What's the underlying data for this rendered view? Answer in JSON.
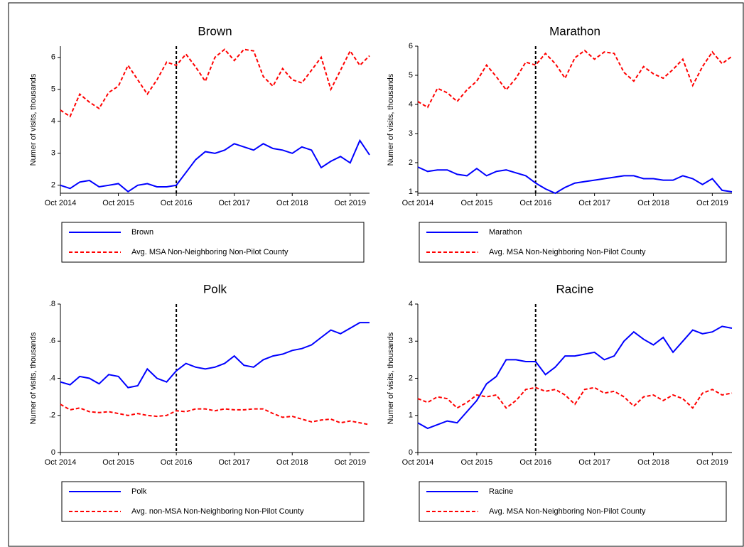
{
  "chart_data": [
    {
      "type": "line",
      "title": "Brown",
      "y_label": "Numer of visits, thousands",
      "x": [
        "2014-10",
        "2014-12",
        "2015-02",
        "2015-04",
        "2015-06",
        "2015-08",
        "2015-10",
        "2015-12",
        "2016-02",
        "2016-04",
        "2016-06",
        "2016-08",
        "2016-10",
        "2016-12",
        "2017-02",
        "2017-04",
        "2017-06",
        "2017-08",
        "2017-10",
        "2017-12",
        "2018-02",
        "2018-04",
        "2018-06",
        "2018-08",
        "2018-10",
        "2018-12",
        "2019-02",
        "2019-04",
        "2019-06",
        "2019-08",
        "2019-10",
        "2019-12",
        "2020-02"
      ],
      "xlim": [
        "2014-10",
        "2020-02"
      ],
      "xticks": [
        {
          "value": "2014-10",
          "label": "Oct 2014"
        },
        {
          "value": "2015-10",
          "label": "Oct 2015"
        },
        {
          "value": "2016-10",
          "label": "Oct 2016"
        },
        {
          "value": "2017-10",
          "label": "Oct 2017"
        },
        {
          "value": "2018-10",
          "label": "Oct 2018"
        },
        {
          "value": "2019-10",
          "label": "Oct 2019"
        }
      ],
      "ylim": [
        1.75,
        6.35
      ],
      "yticks": [
        2,
        3,
        4,
        5,
        6
      ],
      "vline": "2016-10",
      "series": [
        {
          "name": "Brown",
          "color": "#0000ff",
          "dashed": false,
          "values": [
            2.0,
            1.9,
            2.1,
            2.15,
            1.95,
            2.0,
            2.05,
            1.8,
            2.0,
            2.05,
            1.95,
            1.95,
            2.0,
            2.4,
            2.8,
            3.05,
            3.0,
            3.1,
            3.3,
            3.2,
            3.1,
            3.3,
            3.15,
            3.1,
            3.0,
            3.2,
            3.1,
            2.55,
            2.75,
            2.9,
            2.7,
            3.4,
            2.95
          ]
        },
        {
          "name": "Avg. MSA Non-Neighboring Non-Pilot County",
          "color": "#ff0000",
          "dashed": true,
          "values": [
            4.35,
            4.15,
            4.85,
            4.6,
            4.4,
            4.9,
            5.1,
            5.75,
            5.3,
            4.85,
            5.3,
            5.85,
            5.75,
            6.1,
            5.7,
            5.25,
            6.0,
            6.25,
            5.9,
            6.25,
            6.2,
            5.4,
            5.1,
            5.65,
            5.3,
            5.2,
            5.6,
            6.0,
            5.0,
            5.6,
            6.2,
            5.75,
            6.05
          ]
        }
      ]
    },
    {
      "type": "line",
      "title": "Marathon",
      "y_label": "Numer of visits, thousands",
      "x": [
        "2014-10",
        "2014-12",
        "2015-02",
        "2015-04",
        "2015-06",
        "2015-08",
        "2015-10",
        "2015-12",
        "2016-02",
        "2016-04",
        "2016-06",
        "2016-08",
        "2016-10",
        "2016-12",
        "2017-02",
        "2017-04",
        "2017-06",
        "2017-08",
        "2017-10",
        "2017-12",
        "2018-02",
        "2018-04",
        "2018-06",
        "2018-08",
        "2018-10",
        "2018-12",
        "2019-02",
        "2019-04",
        "2019-06",
        "2019-08",
        "2019-10",
        "2019-12",
        "2020-02"
      ],
      "xlim": [
        "2014-10",
        "2020-02"
      ],
      "xticks": [
        {
          "value": "2014-10",
          "label": "Oct 2014"
        },
        {
          "value": "2015-10",
          "label": "Oct 2015"
        },
        {
          "value": "2016-10",
          "label": "Oct 2016"
        },
        {
          "value": "2017-10",
          "label": "Oct 2017"
        },
        {
          "value": "2018-10",
          "label": "Oct 2018"
        },
        {
          "value": "2019-10",
          "label": "Oct 2019"
        }
      ],
      "ylim": [
        0.95,
        6.0
      ],
      "yticks": [
        1,
        2,
        3,
        4,
        5,
        6
      ],
      "vline": "2016-10",
      "series": [
        {
          "name": "Marathon",
          "color": "#0000ff",
          "dashed": false,
          "values": [
            1.85,
            1.7,
            1.75,
            1.75,
            1.6,
            1.55,
            1.8,
            1.55,
            1.7,
            1.75,
            1.65,
            1.55,
            1.3,
            1.1,
            0.95,
            1.15,
            1.3,
            1.35,
            1.4,
            1.45,
            1.5,
            1.55,
            1.55,
            1.45,
            1.45,
            1.4,
            1.4,
            1.55,
            1.45,
            1.25,
            1.45,
            1.05,
            1.0
          ]
        },
        {
          "name": "Avg. MSA Non-Neighboring Non-Pilot County",
          "color": "#ff0000",
          "dashed": true,
          "values": [
            4.1,
            3.9,
            4.55,
            4.4,
            4.1,
            4.5,
            4.8,
            5.35,
            4.95,
            4.5,
            4.9,
            5.45,
            5.35,
            5.75,
            5.4,
            4.9,
            5.6,
            5.85,
            5.55,
            5.8,
            5.75,
            5.1,
            4.8,
            5.3,
            5.05,
            4.9,
            5.2,
            5.55,
            4.65,
            5.3,
            5.8,
            5.4,
            5.65
          ]
        }
      ]
    },
    {
      "type": "line",
      "title": "Polk",
      "y_label": "Numer of visits, thousands",
      "x": [
        "2014-10",
        "2014-12",
        "2015-02",
        "2015-04",
        "2015-06",
        "2015-08",
        "2015-10",
        "2015-12",
        "2016-02",
        "2016-04",
        "2016-06",
        "2016-08",
        "2016-10",
        "2016-12",
        "2017-02",
        "2017-04",
        "2017-06",
        "2017-08",
        "2017-10",
        "2017-12",
        "2018-02",
        "2018-04",
        "2018-06",
        "2018-08",
        "2018-10",
        "2018-12",
        "2019-02",
        "2019-04",
        "2019-06",
        "2019-08",
        "2019-10",
        "2019-12",
        "2020-02"
      ],
      "xlim": [
        "2014-10",
        "2020-02"
      ],
      "xticks": [
        {
          "value": "2014-10",
          "label": "Oct 2014"
        },
        {
          "value": "2015-10",
          "label": "Oct 2015"
        },
        {
          "value": "2016-10",
          "label": "Oct 2016"
        },
        {
          "value": "2017-10",
          "label": "Oct 2017"
        },
        {
          "value": "2018-10",
          "label": "Oct 2018"
        },
        {
          "value": "2019-10",
          "label": "Oct 2019"
        }
      ],
      "ylim": [
        0,
        0.8
      ],
      "yticks": [
        0,
        {
          "value": 0.2,
          "label": ".2"
        },
        {
          "value": 0.4,
          "label": ".4"
        },
        {
          "value": 0.6,
          "label": ".6"
        },
        {
          "value": 0.8,
          "label": ".8"
        }
      ],
      "vline": "2016-10",
      "series": [
        {
          "name": "Polk",
          "color": "#0000ff",
          "dashed": false,
          "values": [
            0.38,
            0.365,
            0.41,
            0.4,
            0.37,
            0.42,
            0.41,
            0.35,
            0.36,
            0.45,
            0.4,
            0.38,
            0.44,
            0.48,
            0.46,
            0.45,
            0.46,
            0.48,
            0.52,
            0.47,
            0.46,
            0.5,
            0.52,
            0.53,
            0.55,
            0.56,
            0.58,
            0.62,
            0.66,
            0.64,
            0.67,
            0.7,
            0.7
          ]
        },
        {
          "name": "Avg. non-MSA Non-Neighboring Non-Pilot County",
          "color": "#ff0000",
          "dashed": true,
          "values": [
            0.26,
            0.23,
            0.24,
            0.22,
            0.215,
            0.22,
            0.21,
            0.2,
            0.21,
            0.2,
            0.195,
            0.2,
            0.225,
            0.22,
            0.235,
            0.235,
            0.225,
            0.235,
            0.23,
            0.23,
            0.235,
            0.235,
            0.21,
            0.19,
            0.195,
            0.18,
            0.165,
            0.175,
            0.18,
            0.16,
            0.17,
            0.16,
            0.15
          ]
        }
      ]
    },
    {
      "type": "line",
      "title": "Racine",
      "y_label": "Numer of visits, thousands",
      "x": [
        "2014-10",
        "2014-12",
        "2015-02",
        "2015-04",
        "2015-06",
        "2015-08",
        "2015-10",
        "2015-12",
        "2016-02",
        "2016-04",
        "2016-06",
        "2016-08",
        "2016-10",
        "2016-12",
        "2017-02",
        "2017-04",
        "2017-06",
        "2017-08",
        "2017-10",
        "2017-12",
        "2018-02",
        "2018-04",
        "2018-06",
        "2018-08",
        "2018-10",
        "2018-12",
        "2019-02",
        "2019-04",
        "2019-06",
        "2019-08",
        "2019-10",
        "2019-12",
        "2020-02"
      ],
      "xlim": [
        "2014-10",
        "2020-02"
      ],
      "xticks": [
        {
          "value": "2014-10",
          "label": "Oct 2014"
        },
        {
          "value": "2015-10",
          "label": "Oct 2015"
        },
        {
          "value": "2016-10",
          "label": "Oct 2016"
        },
        {
          "value": "2017-10",
          "label": "Oct 2017"
        },
        {
          "value": "2018-10",
          "label": "Oct 2018"
        },
        {
          "value": "2019-10",
          "label": "Oct 2019"
        }
      ],
      "ylim": [
        0,
        4
      ],
      "yticks": [
        0,
        1,
        2,
        3,
        4
      ],
      "vline": "2016-10",
      "series": [
        {
          "name": "Racine",
          "color": "#0000ff",
          "dashed": false,
          "values": [
            0.8,
            0.65,
            0.75,
            0.85,
            0.8,
            1.1,
            1.4,
            1.85,
            2.05,
            2.5,
            2.5,
            2.45,
            2.45,
            2.1,
            2.3,
            2.6,
            2.6,
            2.65,
            2.7,
            2.5,
            2.6,
            3.0,
            3.25,
            3.05,
            2.9,
            3.1,
            2.7,
            3.0,
            3.3,
            3.2,
            3.25,
            3.4,
            3.35
          ]
        },
        {
          "name": "Avg. MSA Non-Neighboring Non-Pilot County",
          "color": "#ff0000",
          "dashed": true,
          "values": [
            1.45,
            1.35,
            1.5,
            1.45,
            1.2,
            1.35,
            1.55,
            1.5,
            1.55,
            1.2,
            1.4,
            1.7,
            1.75,
            1.65,
            1.7,
            1.55,
            1.3,
            1.7,
            1.75,
            1.6,
            1.65,
            1.5,
            1.25,
            1.5,
            1.55,
            1.4,
            1.55,
            1.45,
            1.2,
            1.6,
            1.7,
            1.55,
            1.6
          ]
        }
      ]
    }
  ]
}
